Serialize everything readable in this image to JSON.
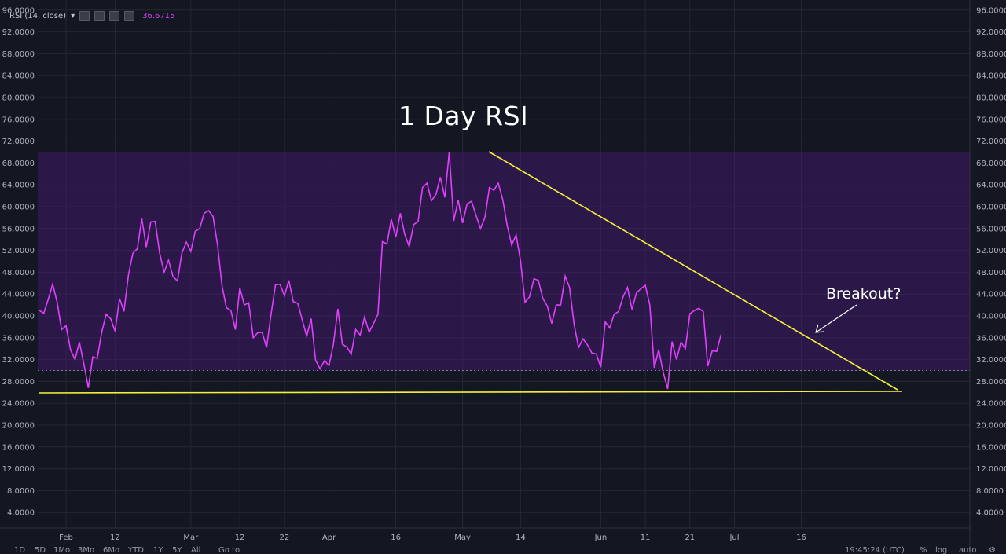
{
  "indicator": {
    "label": "RSI (14, close)",
    "value": "36.6715",
    "accent_color": "#e040fb"
  },
  "annotations": {
    "title": "1 Day RSI",
    "callout": "Breakout?"
  },
  "toolbar": {
    "timeframes": [
      "1D",
      "5D",
      "1Mo",
      "3Mo",
      "6Mo",
      "YTD",
      "1Y",
      "5Y",
      "All"
    ],
    "goto_label": "Go to",
    "clock": "19:45:24 (UTC)",
    "percent_label": "%",
    "log_label": "log",
    "auto_label": "auto"
  },
  "chart_data": {
    "type": "line",
    "ylim": [
      0,
      98
    ],
    "yticks": [
      "96.0000",
      "92.0000",
      "88.0000",
      "84.0000",
      "80.0000",
      "76.0000",
      "72.0000",
      "68.0000",
      "64.0000",
      "60.0000",
      "56.0000",
      "52.0000",
      "48.0000",
      "44.0000",
      "40.0000",
      "36.0000",
      "32.0000",
      "28.0000",
      "24.0000",
      "20.0000",
      "16.0000",
      "12.0000",
      "8.0000",
      "4.0000"
    ],
    "xticks": [
      {
        "label": "Feb",
        "day": 6
      },
      {
        "label": "12",
        "day": 17
      },
      {
        "label": "Mar",
        "day": 34
      },
      {
        "label": "12",
        "day": 45
      },
      {
        "label": "22",
        "day": 55
      },
      {
        "label": "Apr",
        "day": 65
      },
      {
        "label": "16",
        "day": 80
      },
      {
        "label": "May",
        "day": 95
      },
      {
        "label": "14",
        "day": 108
      },
      {
        "label": "Jun",
        "day": 126
      },
      {
        "label": "11",
        "day": 136
      },
      {
        "label": "21",
        "day": 146
      },
      {
        "label": "Jul",
        "day": 156
      },
      {
        "label": "16",
        "day": 171
      }
    ],
    "overbought": 70,
    "oversold": 30,
    "band_color": "#4a1a7a",
    "line_color": "#e040fb",
    "trendline_color": "#f5f03a",
    "rsi": [
      41,
      40.5,
      43,
      45.8,
      42.5,
      37.5,
      38.2,
      33.8,
      32,
      35.2,
      31.2,
      26.8,
      32.5,
      32.2,
      37,
      40.3,
      39.5,
      37.2,
      43.2,
      40.8,
      47.5,
      51.5,
      52.3,
      57.8,
      52.6,
      57.2,
      57.3,
      51.5,
      48,
      50.2,
      47.2,
      46.4,
      51.5,
      53.5,
      51.8,
      55.5,
      56,
      58.8,
      59.3,
      58.2,
      53,
      45.5,
      41.5,
      41,
      37.5,
      45.2,
      42,
      42.4,
      36,
      36.9,
      37,
      34.2,
      40.2,
      45.7,
      45.8,
      43.7,
      46.5,
      42.6,
      42.3,
      39.3,
      36.3,
      39.5,
      31.9,
      30.3,
      31.8,
      30.9,
      34.8,
      41.3,
      34.8,
      34.3,
      33,
      37.5,
      36.5,
      39.8,
      37,
      38.6,
      40.3,
      53.6,
      53.2,
      57.7,
      54.4,
      58.8,
      55,
      52.7,
      56.7,
      57.3,
      63.5,
      64.3,
      61.1,
      62.2,
      65.4,
      61.7,
      70,
      57.4,
      61.2,
      57,
      60.5,
      61,
      58.4,
      56,
      58,
      63.5,
      63,
      64.3,
      61.3,
      56.5,
      53,
      54.8,
      50,
      42.5,
      43.5,
      46.8,
      46.5,
      43.2,
      41.8,
      38.6,
      42,
      42,
      47.3,
      45.2,
      38.5,
      34.2,
      35.8,
      34.7,
      33.2,
      33,
      30.6,
      38.9,
      37.8,
      40.3,
      40.8,
      43.5,
      45.2,
      41.2,
      44.2,
      45,
      45.6,
      42,
      30.5,
      33.8,
      29.7,
      26.6,
      35.3,
      32,
      35.2,
      34,
      40.4,
      41,
      41.4,
      40.8,
      30.8,
      33.6,
      33.5,
      36.6
    ]
  }
}
